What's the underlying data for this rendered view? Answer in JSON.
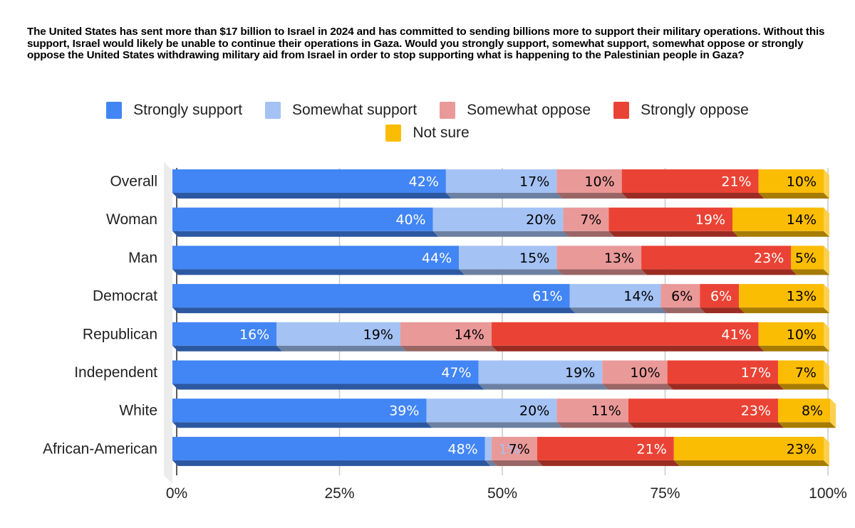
{
  "chart_data": {
    "type": "bar",
    "orientation": "horizontal",
    "stacked": "percent",
    "title": "The United States has sent more than $17 billion to Israel in 2024 and has committed to sending billions more to support their military operations. Without this support, Israel would likely be unable to continue their operations in Gaza. Would you strongly support, somewhat support, somewhat oppose or strongly oppose the United States withdrawing military aid from Israel in order to stop supporting what is happening to the Palestinian people in Gaza?",
    "xlabel": "",
    "ylabel": "",
    "xlim": [
      0,
      100
    ],
    "x_ticks": [
      "0%",
      "25%",
      "50%",
      "75%",
      "100%"
    ],
    "x_tick_values": [
      0,
      25,
      50,
      75,
      100
    ],
    "grid": true,
    "legend_position": "top",
    "categories": [
      "Overall",
      "Woman",
      "Man",
      "Democrat",
      "Republican",
      "Independent",
      "White",
      "African-American"
    ],
    "series": [
      {
        "name": "Strongly support",
        "color": "#4285f4",
        "label_color": "#ffffff",
        "values": [
          42,
          40,
          44,
          61,
          16,
          47,
          39,
          48
        ]
      },
      {
        "name": "Somewhat support",
        "color": "#a4c2f4",
        "label_color": "#000000",
        "values": [
          17,
          20,
          15,
          14,
          19,
          19,
          20,
          1
        ]
      },
      {
        "name": "Somewhat oppose",
        "color": "#ea9999",
        "label_color": "#000000",
        "values": [
          10,
          7,
          13,
          6,
          14,
          10,
          11,
          7
        ]
      },
      {
        "name": "Strongly oppose",
        "color": "#ea4335",
        "label_color": "#ffffff",
        "values": [
          21,
          19,
          23,
          6,
          41,
          17,
          23,
          21
        ]
      },
      {
        "name": "Not sure",
        "color": "#fbbc04",
        "label_color": "#000000",
        "values": [
          10,
          14,
          5,
          13,
          10,
          7,
          8,
          23
        ]
      }
    ],
    "value_label_suffix": "%"
  }
}
